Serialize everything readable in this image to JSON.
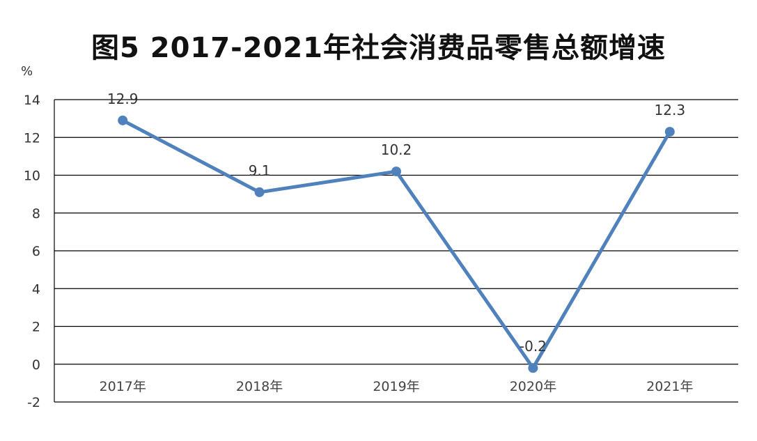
{
  "chart_data": {
    "type": "line",
    "title": "图5  2017-2021年社会消费品零售总额增速",
    "ylabel": "%",
    "xlabel": "",
    "categories": [
      "2017年",
      "2018年",
      "2019年",
      "2020年",
      "2021年"
    ],
    "series": [
      {
        "values": [
          12.9,
          9.1,
          10.2,
          -0.2,
          12.3
        ],
        "color": "#4f81bd"
      }
    ],
    "data_labels": [
      "12.9",
      "9.1",
      "10.2",
      "-0.2",
      "12.3"
    ],
    "ylim": [
      -2,
      14
    ],
    "yticks": [
      "14",
      "12",
      "10",
      "8",
      "6",
      "4",
      "2",
      "0",
      "-2"
    ],
    "grid": true,
    "legend": "none"
  }
}
